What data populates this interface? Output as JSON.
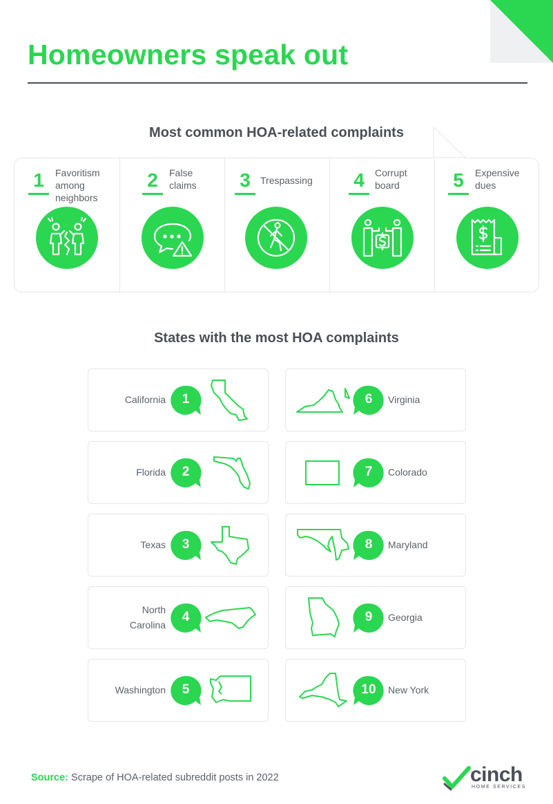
{
  "title": "Homeowners speak out",
  "colors": {
    "accent": "#2bd651",
    "text": "#4a4f57",
    "border": "#e3e6e9"
  },
  "complaints": {
    "heading": "Most common HOA-related complaints",
    "items": [
      {
        "rank": "1",
        "label": "Favoritism among neighbors",
        "icon": "arguing-neighbors-icon"
      },
      {
        "rank": "2",
        "label": "False claims",
        "icon": "speech-bubble-warning-icon"
      },
      {
        "rank": "3",
        "label": "Trespassing",
        "icon": "no-trespassing-icon"
      },
      {
        "rank": "4",
        "label": "Corrupt board",
        "icon": "bribe-money-icon"
      },
      {
        "rank": "5",
        "label": "Expensive dues",
        "icon": "receipt-dollar-icon"
      }
    ]
  },
  "states": {
    "heading": "States with the most HOA complaints",
    "items": [
      {
        "rank": "1",
        "name": "California",
        "icon": "california-outline-icon"
      },
      {
        "rank": "2",
        "name": "Florida",
        "icon": "florida-outline-icon"
      },
      {
        "rank": "3",
        "name": "Texas",
        "icon": "texas-outline-icon"
      },
      {
        "rank": "4",
        "name": "North Carolina",
        "icon": "north-carolina-outline-icon"
      },
      {
        "rank": "5",
        "name": "Washington",
        "icon": "washington-outline-icon"
      },
      {
        "rank": "6",
        "name": "Virginia",
        "icon": "virginia-outline-icon"
      },
      {
        "rank": "7",
        "name": "Colorado",
        "icon": "colorado-outline-icon"
      },
      {
        "rank": "8",
        "name": "Maryland",
        "icon": "maryland-outline-icon"
      },
      {
        "rank": "9",
        "name": "Georgia",
        "icon": "georgia-outline-icon"
      },
      {
        "rank": "10",
        "name": "New York",
        "icon": "new-york-outline-icon"
      }
    ]
  },
  "source": {
    "label": "Source:",
    "text": "Scrape of HOA-related subreddit posts in 2022"
  },
  "brand": {
    "name": "cinch",
    "tagline": "HOME SERVICES"
  }
}
